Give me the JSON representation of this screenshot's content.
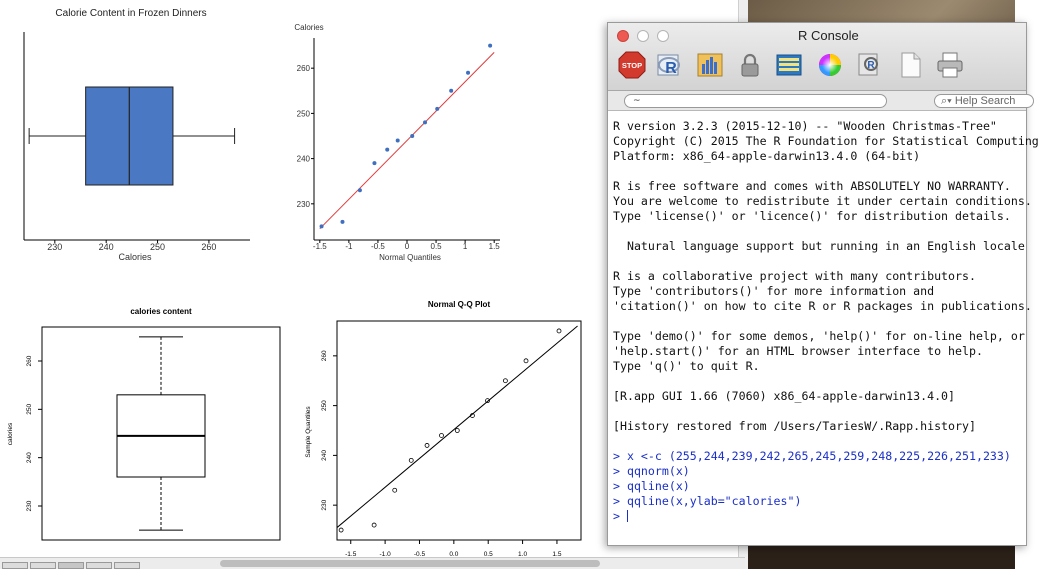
{
  "plots": {
    "top_left": {
      "title": "Calorie Content in Frozen Dinners",
      "xlabel": "Calories",
      "ticks": [
        "230",
        "240",
        "250",
        "260"
      ],
      "box_color": "#4a78c2"
    },
    "top_right": {
      "ylabel": "Calories",
      "xlabel": "Normal Quantiles",
      "yticks": [
        "230",
        "240",
        "250",
        "260"
      ],
      "xticks": [
        "-1.5",
        "-1",
        "-0.5",
        "0",
        "0.5",
        "1",
        "1.5"
      ],
      "point_color": "#3f6fc0",
      "line_color": "#e03a3a"
    },
    "bottom_left": {
      "title": "calories content",
      "ylabel": "calories",
      "yticks": [
        "230",
        "240",
        "250",
        "260"
      ]
    },
    "bottom_right": {
      "title": "Normal Q-Q Plot",
      "ylabel": "Sample Quantiles",
      "yticks": [
        "230",
        "240",
        "250",
        "260"
      ],
      "xticks": [
        "-1.5",
        "-1.0",
        "-0.5",
        "0.0",
        "0.5",
        "1.0",
        "1.5"
      ]
    }
  },
  "chart_data": [
    {
      "type": "box",
      "title": "Calorie Content in Frozen Dinners",
      "xlabel": "Calories",
      "orientation": "horizontal",
      "min": 225,
      "q1": 236,
      "median": 244.5,
      "q3": 253,
      "max": 265,
      "xlim": [
        224,
        268
      ]
    },
    {
      "type": "scatter",
      "xlabel": "Normal Quantiles",
      "ylabel": "Calories",
      "x": [
        -1.47,
        -1.11,
        -0.81,
        -0.56,
        -0.34,
        -0.16,
        0.09,
        0.31,
        0.52,
        0.76,
        1.05,
        1.43
      ],
      "values": [
        225,
        226,
        233,
        239,
        242,
        244,
        245,
        248,
        251,
        255,
        259,
        265
      ],
      "line": {
        "from": [
          -1.5,
          224.5
        ],
        "to": [
          1.5,
          263.5
        ]
      },
      "xlim": [
        -1.6,
        1.6
      ],
      "ylim": [
        222,
        268
      ]
    },
    {
      "type": "box",
      "title": "calories content",
      "ylabel": "calories",
      "orientation": "vertical",
      "min": 225,
      "q1": 236,
      "median": 244.5,
      "q3": 253,
      "max": 265,
      "ylim": [
        224,
        266
      ]
    },
    {
      "type": "scatter",
      "title": "Normal Q-Q Plot",
      "ylabel": "Sample Quantiles",
      "x": [
        -1.64,
        -1.16,
        -0.86,
        -0.62,
        -0.39,
        -0.18,
        0.05,
        0.27,
        0.49,
        0.75,
        1.05,
        1.53
      ],
      "values": [
        225,
        226,
        233,
        239,
        242,
        244,
        245,
        248,
        251,
        255,
        259,
        265
      ],
      "line": {
        "from": [
          -1.7,
          225.5
        ],
        "to": [
          1.8,
          266
        ]
      },
      "xlim": [
        -1.7,
        1.85
      ],
      "ylim": [
        223,
        267
      ]
    }
  ],
  "console": {
    "title": "R Console",
    "path_value": "~",
    "help_placeholder": "Help Search",
    "stop_label": "STOP",
    "lines": [
      {
        "text": "R version 3.2.3 (2015-12-10) -- \"Wooden Christmas-Tree\"",
        "cls": ""
      },
      {
        "text": "Copyright (C) 2015 The R Foundation for Statistical Computing",
        "cls": ""
      },
      {
        "text": "Platform: x86_64-apple-darwin13.4.0 (64-bit)",
        "cls": ""
      },
      {
        "text": "",
        "cls": ""
      },
      {
        "text": "R is free software and comes with ABSOLUTELY NO WARRANTY.",
        "cls": ""
      },
      {
        "text": "You are welcome to redistribute it under certain conditions.",
        "cls": ""
      },
      {
        "text": "Type 'license()' or 'licence()' for distribution details.",
        "cls": ""
      },
      {
        "text": "",
        "cls": ""
      },
      {
        "text": "  Natural language support but running in an English locale",
        "cls": ""
      },
      {
        "text": "",
        "cls": ""
      },
      {
        "text": "R is a collaborative project with many contributors.",
        "cls": ""
      },
      {
        "text": "Type 'contributors()' for more information and",
        "cls": ""
      },
      {
        "text": "'citation()' on how to cite R or R packages in publications.",
        "cls": ""
      },
      {
        "text": "",
        "cls": ""
      },
      {
        "text": "Type 'demo()' for some demos, 'help()' for on-line help, or",
        "cls": ""
      },
      {
        "text": "'help.start()' for an HTML browser interface to help.",
        "cls": ""
      },
      {
        "text": "Type 'q()' to quit R.",
        "cls": ""
      },
      {
        "text": "",
        "cls": ""
      },
      {
        "text": "[R.app GUI 1.66 (7060) x86_64-apple-darwin13.4.0]",
        "cls": ""
      },
      {
        "text": "",
        "cls": ""
      },
      {
        "text": "[History restored from /Users/TariesW/.Rapp.history]",
        "cls": ""
      },
      {
        "text": "",
        "cls": ""
      },
      {
        "text": "> x <-c (255,244,239,242,265,245,259,248,225,226,251,233)",
        "cls": "cmd"
      },
      {
        "text": "> qqnorm(x)",
        "cls": "cmd"
      },
      {
        "text": "> qqline(x)",
        "cls": "cmd"
      },
      {
        "text": "> qqline(x,ylab=\"calories\")",
        "cls": "cmd"
      },
      {
        "text": "> ",
        "cls": "cmd",
        "caret": true
      }
    ]
  }
}
